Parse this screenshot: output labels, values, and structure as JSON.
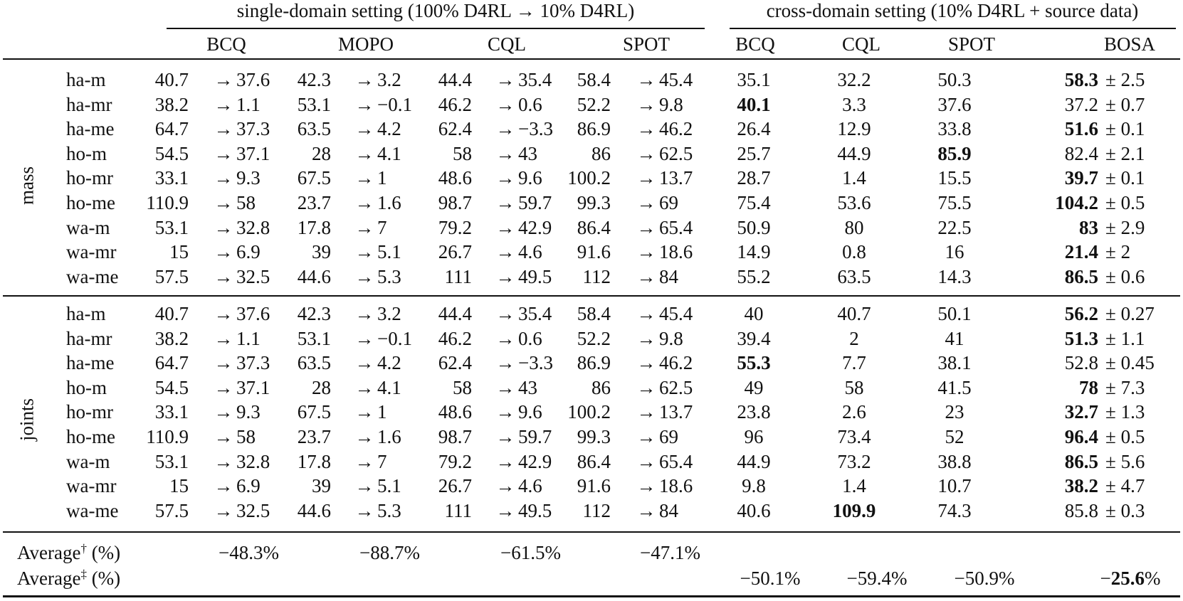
{
  "header": {
    "single_group": "single-domain setting (100% D4RL → 10% D4RL)",
    "cross_group": "cross-domain setting (10% D4RL + source data)",
    "single_methods": [
      "BCQ",
      "MOPO",
      "CQL",
      "SPOT"
    ],
    "cross_methods": [
      "BCQ",
      "CQL",
      "SPOT",
      "BOSA"
    ]
  },
  "groups": [
    {
      "name": "mass",
      "rows": [
        {
          "task": "ha-m",
          "single": [
            [
              "40.7",
              "37.6"
            ],
            [
              "42.3",
              "3.2"
            ],
            [
              "44.4",
              "35.4"
            ],
            [
              "58.4",
              "45.4"
            ]
          ],
          "cross": [
            "35.1",
            "32.2",
            "50.3"
          ],
          "bosa": "58.3",
          "std": "± 2.5",
          "best": "bosa"
        },
        {
          "task": "ha-mr",
          "single": [
            [
              "38.2",
              "1.1"
            ],
            [
              "53.1",
              "−0.1"
            ],
            [
              "46.2",
              "0.6"
            ],
            [
              "52.2",
              "9.8"
            ]
          ],
          "cross": [
            "40.1",
            "3.3",
            "37.6"
          ],
          "bosa": "37.2",
          "std": "± 0.7",
          "best": "bcq"
        },
        {
          "task": "ha-me",
          "single": [
            [
              "64.7",
              "37.3"
            ],
            [
              "63.5",
              "4.2"
            ],
            [
              "62.4",
              "−3.3"
            ],
            [
              "86.9",
              "46.2"
            ]
          ],
          "cross": [
            "26.4",
            "12.9",
            "33.8"
          ],
          "bosa": "51.6",
          "std": "± 0.1",
          "best": "bosa"
        },
        {
          "task": "ho-m",
          "single": [
            [
              "54.5",
              "37.1"
            ],
            [
              "28",
              "4.1"
            ],
            [
              "58",
              "43"
            ],
            [
              "86",
              "62.5"
            ]
          ],
          "cross": [
            "25.7",
            "44.9",
            "85.9"
          ],
          "bosa": "82.4",
          "std": "± 2.1",
          "best": "spot"
        },
        {
          "task": "ho-mr",
          "single": [
            [
              "33.1",
              "9.3"
            ],
            [
              "67.5",
              "1"
            ],
            [
              "48.6",
              "9.6"
            ],
            [
              "100.2",
              "13.7"
            ]
          ],
          "cross": [
            "28.7",
            "1.4",
            "15.5"
          ],
          "bosa": "39.7",
          "std": "± 0.1",
          "best": "bosa"
        },
        {
          "task": "ho-me",
          "single": [
            [
              "110.9",
              "58"
            ],
            [
              "23.7",
              "1.6"
            ],
            [
              "98.7",
              "59.7"
            ],
            [
              "99.3",
              "69"
            ]
          ],
          "cross": [
            "75.4",
            "53.6",
            "75.5"
          ],
          "bosa": "104.2",
          "std": "± 0.5",
          "best": "bosa"
        },
        {
          "task": "wa-m",
          "single": [
            [
              "53.1",
              "32.8"
            ],
            [
              "17.8",
              "7"
            ],
            [
              "79.2",
              "42.9"
            ],
            [
              "86.4",
              "65.4"
            ]
          ],
          "cross": [
            "50.9",
            "80",
            "22.5"
          ],
          "bosa": "83",
          "std": "± 2.9",
          "best": "bosa"
        },
        {
          "task": "wa-mr",
          "single": [
            [
              "15",
              "6.9"
            ],
            [
              "39",
              "5.1"
            ],
            [
              "26.7",
              "4.6"
            ],
            [
              "91.6",
              "18.6"
            ]
          ],
          "cross": [
            "14.9",
            "0.8",
            "16"
          ],
          "bosa": "21.4",
          "std": "± 2",
          "best": "bosa"
        },
        {
          "task": "wa-me",
          "single": [
            [
              "57.5",
              "32.5"
            ],
            [
              "44.6",
              "5.3"
            ],
            [
              "111",
              "49.5"
            ],
            [
              "112",
              "84"
            ]
          ],
          "cross": [
            "55.2",
            "63.5",
            "14.3"
          ],
          "bosa": "86.5",
          "std": "± 0.6",
          "best": "bosa"
        }
      ]
    },
    {
      "name": "joints",
      "rows": [
        {
          "task": "ha-m",
          "single": [
            [
              "40.7",
              "37.6"
            ],
            [
              "42.3",
              "3.2"
            ],
            [
              "44.4",
              "35.4"
            ],
            [
              "58.4",
              "45.4"
            ]
          ],
          "cross": [
            "40",
            "40.7",
            "50.1"
          ],
          "bosa": "56.2",
          "std": "± 0.27",
          "best": "bosa"
        },
        {
          "task": "ha-mr",
          "single": [
            [
              "38.2",
              "1.1"
            ],
            [
              "53.1",
              "−0.1"
            ],
            [
              "46.2",
              "0.6"
            ],
            [
              "52.2",
              "9.8"
            ]
          ],
          "cross": [
            "39.4",
            "2",
            "41"
          ],
          "bosa": "51.3",
          "std": "± 1.1",
          "best": "bosa"
        },
        {
          "task": "ha-me",
          "single": [
            [
              "64.7",
              "37.3"
            ],
            [
              "63.5",
              "4.2"
            ],
            [
              "62.4",
              "−3.3"
            ],
            [
              "86.9",
              "46.2"
            ]
          ],
          "cross": [
            "55.3",
            "7.7",
            "38.1"
          ],
          "bosa": "52.8",
          "std": "± 0.45",
          "best": "bcq"
        },
        {
          "task": "ho-m",
          "single": [
            [
              "54.5",
              "37.1"
            ],
            [
              "28",
              "4.1"
            ],
            [
              "58",
              "43"
            ],
            [
              "86",
              "62.5"
            ]
          ],
          "cross": [
            "49",
            "58",
            "41.5"
          ],
          "bosa": "78",
          "std": "± 7.3",
          "best": "bosa"
        },
        {
          "task": "ho-mr",
          "single": [
            [
              "33.1",
              "9.3"
            ],
            [
              "67.5",
              "1"
            ],
            [
              "48.6",
              "9.6"
            ],
            [
              "100.2",
              "13.7"
            ]
          ],
          "cross": [
            "23.8",
            "2.6",
            "23"
          ],
          "bosa": "32.7",
          "std": "± 1.3",
          "best": "bosa"
        },
        {
          "task": "ho-me",
          "single": [
            [
              "110.9",
              "58"
            ],
            [
              "23.7",
              "1.6"
            ],
            [
              "98.7",
              "59.7"
            ],
            [
              "99.3",
              "69"
            ]
          ],
          "cross": [
            "96",
            "73.4",
            "52"
          ],
          "bosa": "96.4",
          "std": "± 0.5",
          "best": "bosa"
        },
        {
          "task": "wa-m",
          "single": [
            [
              "53.1",
              "32.8"
            ],
            [
              "17.8",
              "7"
            ],
            [
              "79.2",
              "42.9"
            ],
            [
              "86.4",
              "65.4"
            ]
          ],
          "cross": [
            "44.9",
            "73.2",
            "38.8"
          ],
          "bosa": "86.5",
          "std": "± 5.6",
          "best": "bosa"
        },
        {
          "task": "wa-mr",
          "single": [
            [
              "15",
              "6.9"
            ],
            [
              "39",
              "5.1"
            ],
            [
              "26.7",
              "4.6"
            ],
            [
              "91.6",
              "18.6"
            ]
          ],
          "cross": [
            "9.8",
            "1.4",
            "10.7"
          ],
          "bosa": "38.2",
          "std": "± 4.7",
          "best": "bosa"
        },
        {
          "task": "wa-me",
          "single": [
            [
              "57.5",
              "32.5"
            ],
            [
              "44.6",
              "5.3"
            ],
            [
              "111",
              "49.5"
            ],
            [
              "112",
              "84"
            ]
          ],
          "cross": [
            "40.6",
            "109.9",
            "74.3"
          ],
          "bosa": "85.8",
          "std": "± 0.3",
          "best": "cql"
        }
      ]
    }
  ],
  "averages": {
    "single": {
      "label": "Average",
      "mark": "†",
      "unit": " (%)",
      "values": [
        "−48.3%",
        "−88.7%",
        "−61.5%",
        "−47.1%"
      ]
    },
    "cross": {
      "label": "Average",
      "mark": "‡",
      "unit": " (%)",
      "values": [
        "−50.1%",
        "−59.4%",
        "−50.9%"
      ],
      "bosa_sign": "−",
      "bosa_num": "25.6",
      "bosa_pct": "%"
    }
  }
}
